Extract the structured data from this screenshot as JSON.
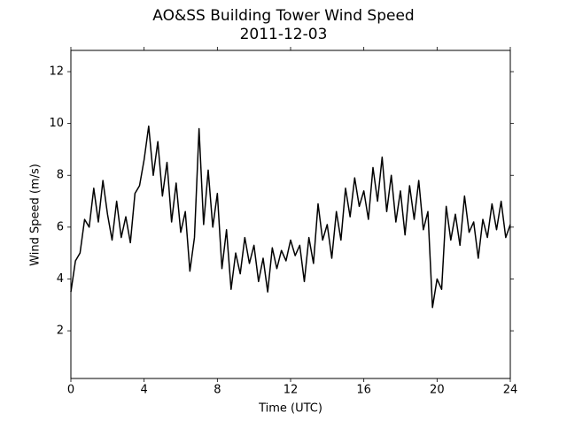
{
  "chart_data": {
    "type": "line",
    "title": "AO&SS Building Tower Wind Speed",
    "subtitle": "2011-12-03",
    "x_label": "Time (UTC)",
    "y_label": "Wind Speed (m/s)",
    "x": [
      0,
      0.25,
      0.5,
      0.75,
      1,
      1.25,
      1.5,
      1.75,
      2,
      2.25,
      2.5,
      2.75,
      3,
      3.25,
      3.5,
      3.75,
      4,
      4.25,
      4.5,
      4.75,
      5,
      5.25,
      5.5,
      5.75,
      6,
      6.25,
      6.5,
      6.75,
      7,
      7.25,
      7.5,
      7.75,
      8,
      8.25,
      8.5,
      8.75,
      9,
      9.25,
      9.5,
      9.75,
      10,
      10.25,
      10.5,
      10.75,
      11,
      11.25,
      11.5,
      11.75,
      12,
      12.25,
      12.5,
      12.75,
      13,
      13.25,
      13.5,
      13.75,
      14,
      14.25,
      14.5,
      14.75,
      15,
      15.25,
      15.5,
      15.75,
      16,
      16.25,
      16.5,
      16.75,
      17,
      17.25,
      17.5,
      17.75,
      18,
      18.25,
      18.5,
      18.75,
      19,
      19.25,
      19.5,
      19.75,
      20,
      20.25,
      20.5,
      20.75,
      21,
      21.25,
      21.5,
      21.75,
      22,
      22.25,
      22.5,
      22.75,
      23,
      23.25,
      23.5,
      23.75,
      24
    ],
    "series": [
      {
        "name": "Wind Speed",
        "color": "#000000",
        "values": [
          3.5,
          4.7,
          5.0,
          6.3,
          6.0,
          7.5,
          6.2,
          7.8,
          6.5,
          5.5,
          7.0,
          5.6,
          6.4,
          5.4,
          7.3,
          7.6,
          8.6,
          9.9,
          8.0,
          9.3,
          7.2,
          8.5,
          6.2,
          7.7,
          5.8,
          6.6,
          4.3,
          5.6,
          9.8,
          6.1,
          8.2,
          6.0,
          7.3,
          4.4,
          5.9,
          3.6,
          5.0,
          4.2,
          5.6,
          4.6,
          5.3,
          3.9,
          4.8,
          3.5,
          5.2,
          4.4,
          5.1,
          4.7,
          5.5,
          4.9,
          5.3,
          3.9,
          5.6,
          4.6,
          6.9,
          5.5,
          6.1,
          4.8,
          6.6,
          5.5,
          7.5,
          6.4,
          7.9,
          6.8,
          7.4,
          6.3,
          8.3,
          7.0,
          8.7,
          6.6,
          8.0,
          6.2,
          7.4,
          5.7,
          7.6,
          6.3,
          7.8,
          5.9,
          6.6,
          2.9,
          4.0,
          3.6,
          6.8,
          5.5,
          6.5,
          5.3,
          7.2,
          5.8,
          6.2,
          4.8,
          6.3,
          5.6,
          6.9,
          5.9,
          7.0,
          5.6,
          6.1
        ]
      }
    ],
    "xlim": [
      0,
      24
    ],
    "xticks": [
      0,
      4,
      8,
      12,
      16,
      20,
      24
    ],
    "ylim": [
      0.16,
      12.82
    ],
    "yticks": [
      2,
      4,
      6,
      8,
      10,
      12
    ]
  }
}
